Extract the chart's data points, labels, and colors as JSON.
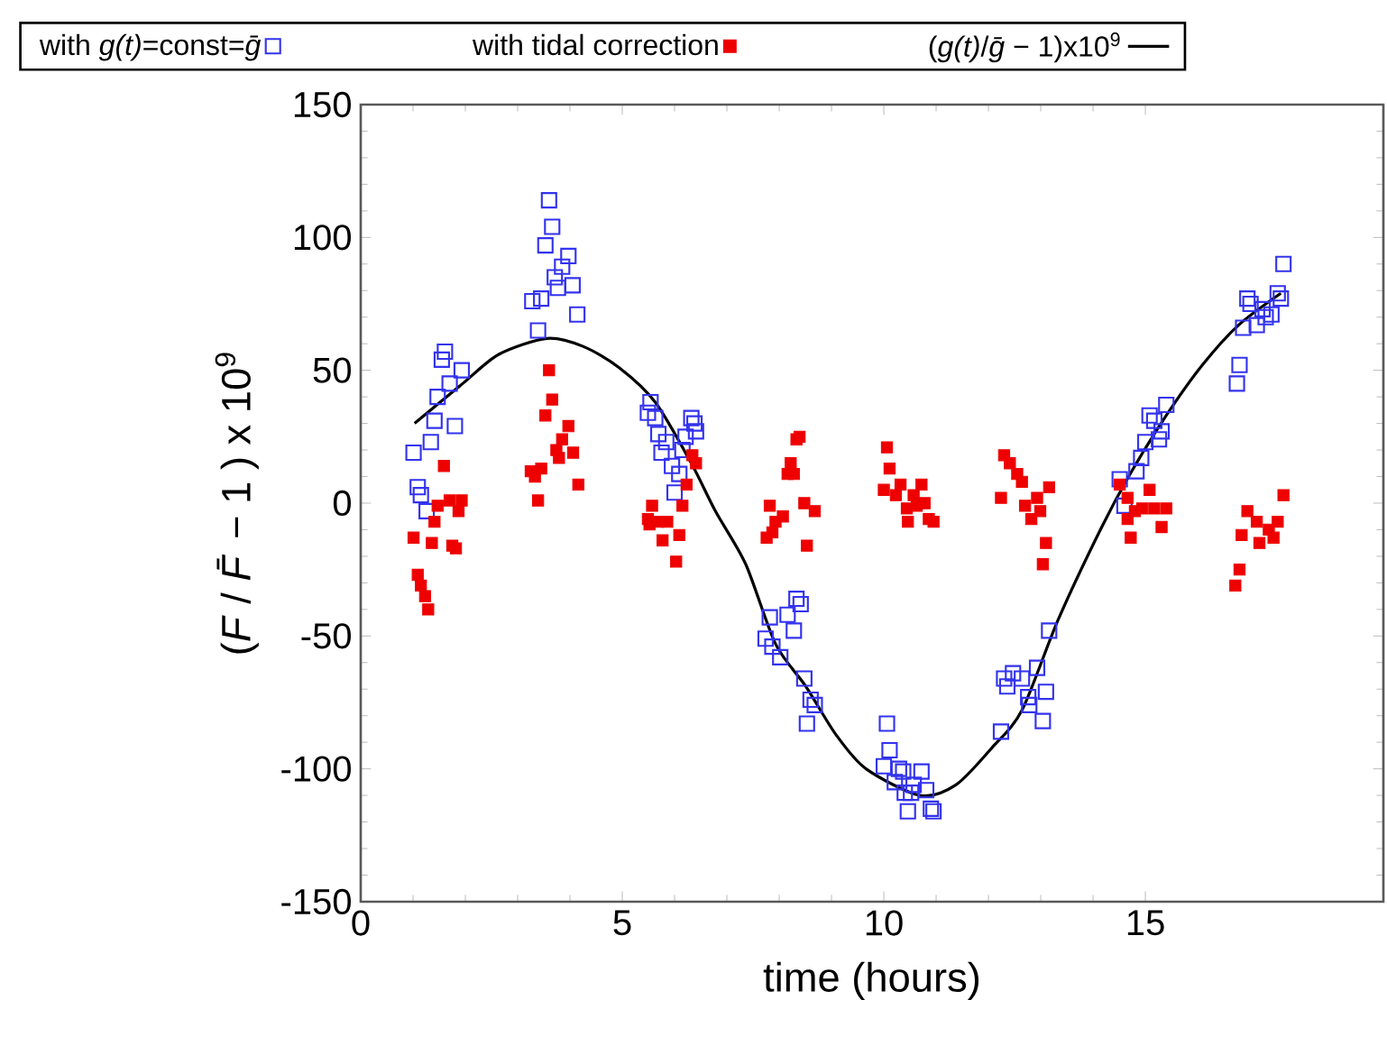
{
  "chart_data": {
    "type": "scatter",
    "xlabel": "time (hours)",
    "ylabel": "(*F* / *F̄* − 1 ) x 10$^{9}$",
    "xlim": [
      0,
      19.55
    ],
    "ylim": [
      -150,
      150
    ],
    "xticks": [
      0,
      5,
      10,
      15
    ],
    "yticks": [
      -150,
      -100,
      -50,
      0,
      50,
      100,
      150
    ],
    "legend": "top",
    "grid": false,
    "marker": "square",
    "series": [
      {
        "name": "with *g(t)*=const=*ḡ*",
        "color": "#3333ee",
        "x": [
          3.6,
          3.66,
          3.53,
          3.97,
          3.85,
          3.71,
          3.77,
          4.05,
          3.28,
          3.45,
          4.14,
          3.39,
          1.61,
          1.55,
          1.93,
          1.7,
          1.47,
          1.8,
          1.41,
          1.34,
          1.01,
          1.09,
          1.15,
          1.26,
          5.54,
          5.49,
          5.63,
          6.32,
          6.41,
          6.21,
          5.69,
          5.84,
          5.75,
          6.15,
          5.95,
          6.09,
          6.0,
          6.38,
          8.33,
          8.41,
          8.16,
          7.82,
          8.28,
          7.74,
          7.87,
          8.02,
          8.48,
          8.6,
          8.68,
          8.53,
          10.06,
          10.11,
          10.0,
          10.29,
          10.37,
          10.72,
          10.21,
          10.57,
          10.81,
          10.4,
          10.52,
          10.46,
          10.9,
          10.95,
          13.16,
          12.3,
          12.47,
          12.93,
          12.64,
          12.36,
          13.1,
          12.76,
          12.78,
          13.04,
          12.24,
          15.4,
          15.08,
          15.17,
          15.31,
          15.26,
          15.0,
          14.92,
          14.83,
          14.51,
          14.6,
          17.64,
          17.53,
          17.59,
          16.95,
          17.01,
          17.24,
          17.41,
          17.3,
          17.13,
          16.87,
          16.8,
          16.75
        ],
        "values": [
          114,
          104,
          97,
          93,
          89,
          85,
          81,
          82,
          76,
          77,
          71,
          65,
          57,
          54,
          50,
          45,
          40,
          29,
          31,
          23,
          19,
          6,
          3,
          -3,
          38,
          34,
          32,
          32,
          27,
          25,
          26,
          23,
          19,
          20,
          14,
          11,
          4,
          30,
          -36,
          -38,
          -42,
          -43,
          -48,
          -51,
          -54,
          -58,
          -66,
          -74,
          -76,
          -83,
          -83,
          -93,
          -99,
          -100,
          -101,
          -101,
          -105,
          -106,
          -108,
          -109,
          -109,
          -116,
          -115,
          -116,
          -48,
          -66,
          -64,
          -62,
          -66,
          -69,
          -71,
          -73,
          -76,
          -82,
          -86,
          37,
          33,
          31,
          27,
          24,
          23,
          17,
          12,
          9,
          -1,
          90,
          79,
          77,
          77,
          75,
          73,
          71,
          70,
          67,
          66,
          52,
          45
        ]
      },
      {
        "name": "with tidal correction",
        "color": "#ee0000",
        "x": [
          3.6,
          3.66,
          3.53,
          3.97,
          3.85,
          3.74,
          4.06,
          3.79,
          3.25,
          3.45,
          3.33,
          4.16,
          3.39,
          1.59,
          1.47,
          1.7,
          1.93,
          1.87,
          1.41,
          1.01,
          1.36,
          1.75,
          1.82,
          1.09,
          1.15,
          1.23,
          1.29,
          6.34,
          6.41,
          6.23,
          6.15,
          5.57,
          5.49,
          5.69,
          5.86,
          6.09,
          5.77,
          6.03,
          5.52,
          8.39,
          8.33,
          8.22,
          8.16,
          8.28,
          7.82,
          8.48,
          8.68,
          8.07,
          7.93,
          7.87,
          7.76,
          8.53,
          10.06,
          10.11,
          10.0,
          10.32,
          10.72,
          10.23,
          10.57,
          10.78,
          10.44,
          10.63,
          10.46,
          10.86,
          10.95,
          12.3,
          12.41,
          12.55,
          12.64,
          13.16,
          12.24,
          12.93,
          12.7,
          12.99,
          12.82,
          13.1,
          13.04,
          14.51,
          15.08,
          14.66,
          14.94,
          15.17,
          15.4,
          14.8,
          14.66,
          15.31,
          14.72,
          17.64,
          16.95,
          17.13,
          17.53,
          17.36,
          16.84,
          17.18,
          17.45,
          16.8,
          16.72
        ],
        "values": [
          50,
          39,
          33,
          29,
          24,
          20,
          19,
          17,
          12,
          13,
          10,
          7,
          1,
          14,
          -1,
          1,
          1,
          -3,
          -7,
          -13,
          -15,
          -16,
          -17,
          -27,
          -31,
          -35,
          -40,
          18,
          15,
          7,
          -1,
          -1,
          -6,
          -7,
          -7,
          -12,
          -14,
          -22,
          -8,
          25,
          24,
          15,
          11,
          11,
          -1,
          0,
          -3,
          -5,
          -7,
          -11,
          -13,
          -16,
          21,
          13,
          5,
          7,
          7,
          3,
          3,
          0,
          -2,
          -1,
          -7,
          -6,
          -7,
          18,
          15,
          11,
          8,
          6,
          2,
          2,
          -1,
          -3,
          -6,
          -15,
          -23,
          7,
          5,
          2,
          -2,
          -2,
          -2,
          -3,
          -6,
          -9,
          -13,
          3,
          -3,
          -7,
          -7,
          -10,
          -12,
          -15,
          -13,
          -25,
          -31
        ]
      },
      {
        "name": "(*g(t)*/*ḡ* − 1)x10$^{9}$",
        "type": "line",
        "color": "#000000",
        "line_style": "solid",
        "marker": "none",
        "x": [
          1.03,
          1.95,
          2.64,
          3.56,
          4.25,
          4.94,
          5.63,
          6.32,
          6.78,
          7.36,
          7.93,
          8.51,
          9.08,
          9.66,
          10.69,
          11.38,
          12.07,
          12.64,
          13.33,
          14.14,
          14.71,
          15.4,
          16.09,
          16.78,
          17.59
        ],
        "values": [
          30,
          45,
          56,
          62,
          59,
          51,
          38,
          15,
          -3,
          -23,
          -53,
          -69,
          -87,
          -100,
          -110,
          -106,
          -92,
          -78,
          -44,
          -10,
          11,
          33,
          52,
          67,
          79
        ]
      }
    ]
  }
}
